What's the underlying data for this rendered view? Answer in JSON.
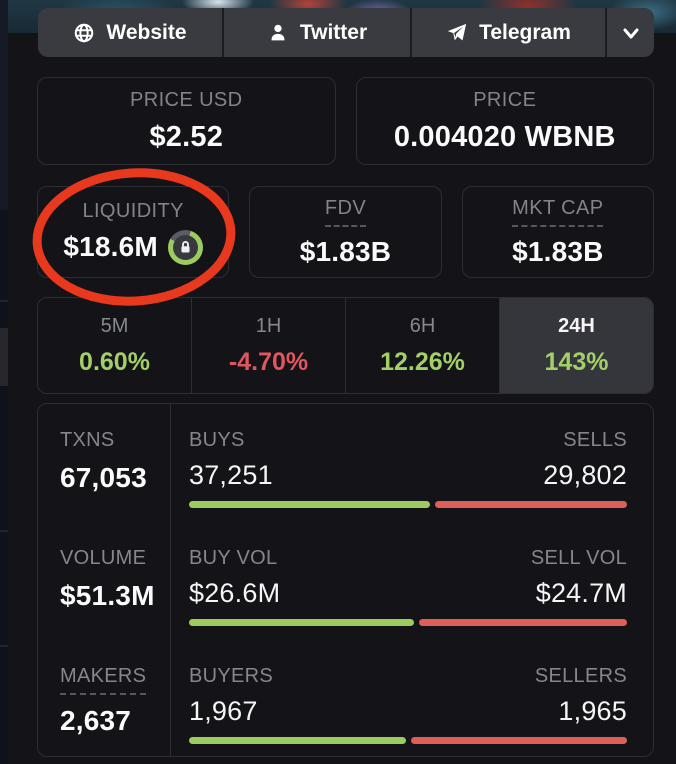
{
  "panel": {
    "links": [
      {
        "label": "Website",
        "icon": "globe-icon"
      },
      {
        "label": "Twitter",
        "icon": "user-icon"
      },
      {
        "label": "Telegram",
        "icon": "telegram-icon"
      }
    ],
    "price_cards": [
      {
        "label": "PRICE USD",
        "value": "$2.52"
      },
      {
        "label": "PRICE",
        "value": "0.004020 WBNB"
      }
    ],
    "metric_cards": [
      {
        "label": "LIQUIDITY",
        "value": "$18.6M",
        "locked_ring": true
      },
      {
        "label": "FDV",
        "value": "$1.83B"
      },
      {
        "label": "MKT CAP",
        "value": "$1.83B"
      }
    ],
    "timeframes": [
      {
        "label": "5M",
        "change": "0.60%",
        "direction": "up",
        "selected": false
      },
      {
        "label": "1H",
        "change": "-4.70%",
        "direction": "down",
        "selected": false
      },
      {
        "label": "6H",
        "change": "12.26%",
        "direction": "up",
        "selected": false
      },
      {
        "label": "24H",
        "change": "143%",
        "direction": "up",
        "selected": true
      }
    ],
    "stats": {
      "rows": [
        {
          "total": {
            "label": "TXNS",
            "value": "67,053"
          },
          "left": {
            "label": "BUYS",
            "value": "37,251"
          },
          "right": {
            "label": "SELLS",
            "value": "29,802"
          },
          "left_pct": 55.6
        },
        {
          "total": {
            "label": "VOLUME",
            "value": "$51.3M"
          },
          "left": {
            "label": "BUY VOL",
            "value": "$26.6M"
          },
          "right": {
            "label": "SELL VOL",
            "value": "$24.7M"
          },
          "left_pct": 51.9
        },
        {
          "total": {
            "label": "MAKERS",
            "value": "2,637"
          },
          "left": {
            "label": "BUYERS",
            "value": "1,967"
          },
          "right": {
            "label": "SELLERS",
            "value": "1,965"
          },
          "left_pct": 50.0
        }
      ]
    }
  },
  "annotation": {
    "shape": "hand-drawn-red-circle",
    "highlights": "LIQUIDITY $18.6M",
    "color": "#e8391f"
  },
  "colors": {
    "positive_text": "#a3cf67",
    "negative_text": "#e0565f",
    "bar_green": "#9ccb5f",
    "bar_red": "#dd5f58",
    "panel_bg": "#131318",
    "button_bg": "#3a3b40",
    "selected_tab_bg": "#35363b",
    "card_border": "#2c2e33",
    "label_gray": "#84878e"
  }
}
